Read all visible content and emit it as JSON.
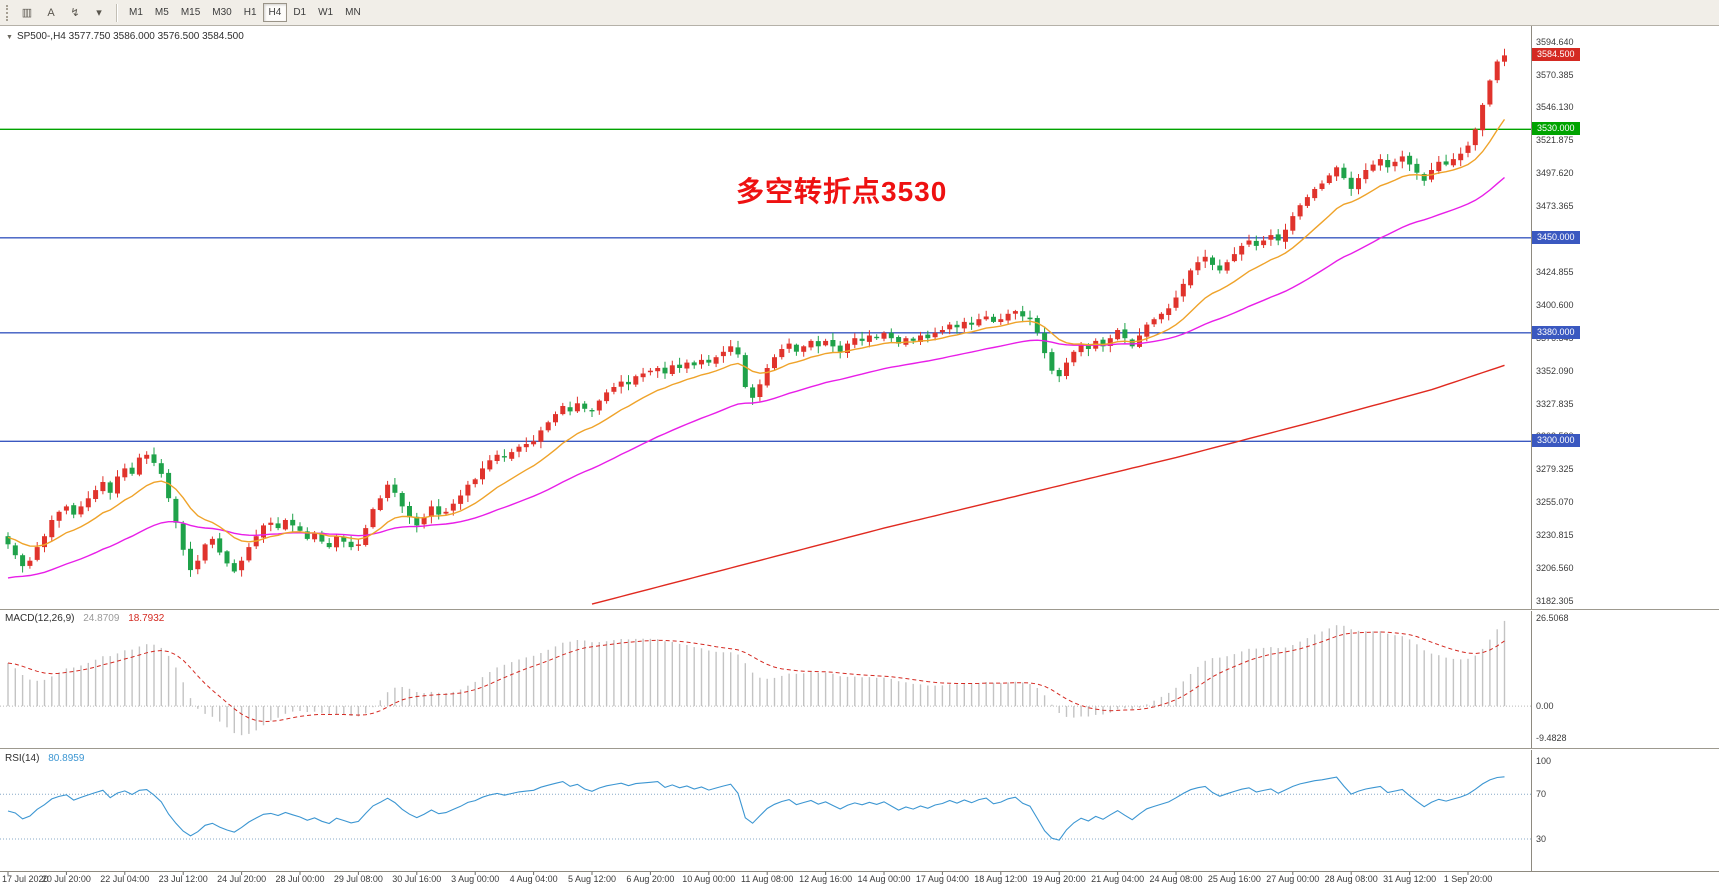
{
  "toolbar": {
    "icons": [
      {
        "name": "bar-charts-icon",
        "glyph": "▥"
      },
      {
        "name": "text-tool-icon",
        "glyph": "A"
      },
      {
        "name": "indicators-icon",
        "glyph": "↯"
      },
      {
        "name": "dropdown-caret-icon",
        "glyph": "▾"
      }
    ],
    "timeframes": [
      "M1",
      "M5",
      "M15",
      "M30",
      "H1",
      "H4",
      "D1",
      "W1",
      "MN"
    ],
    "active_timeframe": "H4"
  },
  "chart": {
    "icons": {
      "collapse": "▼"
    },
    "symbol_info": "SP500-,H4  3577.750 3586.000 3576.500 3584.500",
    "annotation": {
      "text": "多空转折点3530",
      "color": "#ee1111"
    },
    "price_axis": {
      "labels": [
        {
          "text": "3594.640",
          "value": 3594.64
        },
        {
          "text": "3570.385",
          "value": 3570.385
        },
        {
          "text": "3546.130",
          "value": 3546.13
        },
        {
          "text": "3521.875",
          "value": 3521.875
        },
        {
          "text": "3497.620",
          "value": 3497.62
        },
        {
          "text": "3473.365",
          "value": 3473.365
        },
        {
          "text": "3449.110",
          "value": 3449.11
        },
        {
          "text": "3424.855",
          "value": 3424.855
        },
        {
          "text": "3400.600",
          "value": 3400.6
        },
        {
          "text": "3376.345",
          "value": 3376.345
        },
        {
          "text": "3352.090",
          "value": 3352.09
        },
        {
          "text": "3327.835",
          "value": 3327.835
        },
        {
          "text": "3303.580",
          "value": 3303.58
        },
        {
          "text": "3279.325",
          "value": 3279.325
        },
        {
          "text": "3255.070",
          "value": 3255.07
        },
        {
          "text": "3230.815",
          "value": 3230.815
        },
        {
          "text": "3206.560",
          "value": 3206.56
        },
        {
          "text": "3182.305",
          "value": 3182.305
        }
      ]
    },
    "badges": [
      {
        "label": "3584.500",
        "price": 3584.5,
        "color": "#d42a22",
        "type": "current-price"
      },
      {
        "label": "3530.000",
        "price": 3530,
        "color": "#00a300",
        "type": "level"
      },
      {
        "label": "3450.000",
        "price": 3450,
        "color": "#3a58c0",
        "type": "level"
      },
      {
        "label": "3380.000",
        "price": 3380,
        "color": "#3a58c0",
        "type": "level"
      },
      {
        "label": "3300.000",
        "price": 3300,
        "color": "#3a58c0",
        "type": "level"
      }
    ],
    "hlines": [
      {
        "price": 3530,
        "color": "#00a300"
      },
      {
        "price": 3450,
        "color": "#3a58c0"
      },
      {
        "price": 3380,
        "color": "#3a58c0"
      },
      {
        "price": 3300,
        "color": "#3a58c0"
      }
    ]
  },
  "macd_panel": {
    "title": "MACD(12,26,9)",
    "value_main": "24.8709",
    "value_signal": "18.7932",
    "value_main_color": "#9a9a9a",
    "value_signal_color": "#d42a22",
    "axis_labels": [
      {
        "text": "26.5068",
        "value": 26.5068
      },
      {
        "text": "0.00",
        "value": 0
      },
      {
        "text": "-9.4828",
        "value": -9.4828
      }
    ]
  },
  "rsi_panel": {
    "title": "RSI(14)",
    "value": "80.8959",
    "value_color": "#3c96d2",
    "axis_labels": [
      {
        "text": "100",
        "value": 100
      },
      {
        "text": "70",
        "value": 70
      },
      {
        "text": "30",
        "value": 30
      }
    ],
    "levels": [
      70,
      30
    ]
  },
  "chart_data": {
    "type": "candlestick",
    "symbol": "SP500-",
    "timeframe": "H4",
    "ohlc_current": {
      "open": 3577.75,
      "high": 3586.0,
      "low": 3576.5,
      "close": 3584.5
    },
    "ylim": [
      3176,
      3601.5
    ],
    "up_color": "#e0332c",
    "down_color": "#1fa24a",
    "closes": [
      3224,
      3216,
      3208,
      3212,
      3222,
      3230,
      3242,
      3248,
      3252,
      3246,
      3252,
      3258,
      3264,
      3270,
      3262,
      3274,
      3280,
      3276,
      3288,
      3290,
      3284,
      3276,
      3258,
      3240,
      3220,
      3205,
      3212,
      3224,
      3228,
      3218,
      3210,
      3204,
      3212,
      3222,
      3230,
      3238,
      3240,
      3236,
      3242,
      3238,
      3234,
      3228,
      3232,
      3226,
      3222,
      3230,
      3226,
      3222,
      3224,
      3236,
      3250,
      3258,
      3268,
      3262,
      3252,
      3244,
      3238,
      3244,
      3252,
      3246,
      3248,
      3254,
      3260,
      3268,
      3272,
      3280,
      3286,
      3290,
      3288,
      3292,
      3296,
      3298,
      3300,
      3308,
      3314,
      3320,
      3326,
      3322,
      3328,
      3324,
      3322,
      3330,
      3336,
      3340,
      3344,
      3342,
      3348,
      3350,
      3352,
      3354,
      3350,
      3356,
      3354,
      3358,
      3356,
      3360,
      3358,
      3362,
      3366,
      3370,
      3364,
      3340,
      3332,
      3342,
      3354,
      3362,
      3368,
      3372,
      3366,
      3370,
      3374,
      3370,
      3374,
      3370,
      3366,
      3372,
      3376,
      3374,
      3378,
      3376,
      3380,
      3376,
      3372,
      3376,
      3374,
      3378,
      3376,
      3380,
      3382,
      3386,
      3384,
      3388,
      3386,
      3390,
      3392,
      3388,
      3390,
      3394,
      3396,
      3392,
      3390,
      3380,
      3365,
      3352,
      3348,
      3358,
      3366,
      3372,
      3368,
      3374,
      3370,
      3376,
      3382,
      3376,
      3370,
      3378,
      3386,
      3390,
      3394,
      3398,
      3406,
      3416,
      3426,
      3432,
      3436,
      3430,
      3426,
      3432,
      3438,
      3444,
      3448,
      3444,
      3448,
      3452,
      3448,
      3456,
      3466,
      3474,
      3480,
      3486,
      3490,
      3496,
      3502,
      3494,
      3486,
      3494,
      3500,
      3504,
      3508,
      3502,
      3506,
      3510,
      3504,
      3498,
      3492,
      3500,
      3506,
      3504,
      3508,
      3512,
      3518,
      3530,
      3548,
      3566,
      3580,
      3584.5
    ],
    "ma": {
      "fast": {
        "period": 13,
        "color": "#efa32a",
        "seed": 3230
      },
      "mid": {
        "period": 40,
        "color": "#e81ee8",
        "seed": 3198
      },
      "slow": {
        "color": "#e02a20",
        "points": [
          [
            80,
            3180
          ],
          [
            100,
            3208
          ],
          [
            120,
            3236
          ],
          [
            140,
            3262
          ],
          [
            160,
            3288
          ],
          [
            180,
            3316
          ],
          [
            195,
            3338
          ],
          [
            205,
            3356
          ]
        ]
      }
    },
    "macd": {
      "fast": 12,
      "slow": 26,
      "signal": 9,
      "hist_color": "#c3c3c3",
      "signal_color": "#d42a22",
      "ylim": [
        -12,
        28
      ]
    },
    "rsi": {
      "period": 14,
      "color": "#3c96d2",
      "ylim": [
        5,
        105
      ],
      "levels": [
        70,
        30
      ]
    },
    "label_every": 8,
    "time_labels": [
      "17 Jul 2020",
      "20 Jul 20:00",
      "22 Jul 04:00",
      "23 Jul 12:00",
      "24 Jul 20:00",
      "28 Jul 00:00",
      "29 Jul 08:00",
      "30 Jul 16:00",
      "3 Aug 00:00",
      "4 Aug 04:00",
      "5 Aug 12:00",
      "6 Aug 20:00",
      "10 Aug 00:00",
      "11 Aug 08:00",
      "12 Aug 16:00",
      "14 Aug 00:00",
      "17 Aug 04:00",
      "18 Aug 12:00",
      "19 Aug 20:00",
      "21 Aug 04:00",
      "24 Aug 08:00",
      "25 Aug 16:00",
      "27 Aug 00:00",
      "28 Aug 08:00",
      "31 Aug 12:00",
      "1 Sep 20:00"
    ]
  }
}
